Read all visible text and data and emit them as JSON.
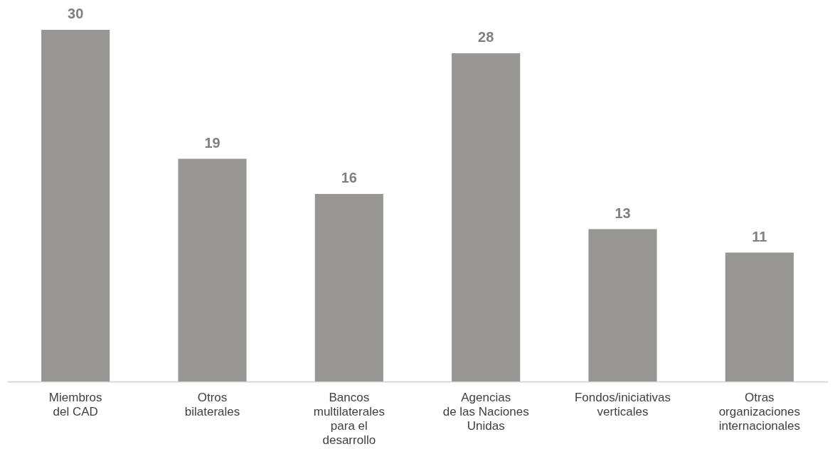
{
  "chart_data": {
    "type": "bar",
    "categories": [
      "Miembros\ndel CAD",
      "Otros\nbilaterales",
      "Bancos\nmultilaterales\npara el\ndesarrollo",
      "Agencias\nde las Naciones\nUnidas",
      "Fondos/iniciativas\nverticales",
      "Otras\norganizaciones\ninternacionales"
    ],
    "values": [
      30,
      19,
      16,
      28,
      13,
      11
    ],
    "color": "#979692",
    "data_labels": true,
    "tick_labels": "x"
  }
}
